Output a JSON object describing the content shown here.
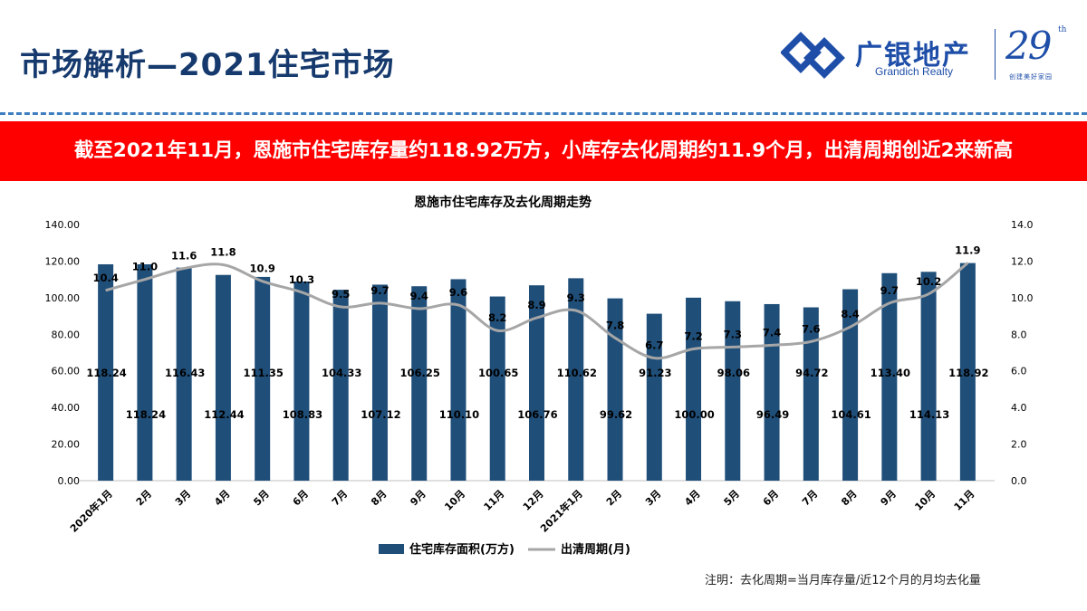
{
  "header": {
    "title": "市场解析—2021住宅市场",
    "brand_cn": "广银地产",
    "brand_en": "Grandich Realty",
    "anniversary_number": "29",
    "anniversary_suffix": "th",
    "anniversary_tagline": "创建美好家园"
  },
  "banner": {
    "text": "截至2021年11月，恩施市住宅库存量约118.92万方，小库存去化周期约11.9个月，出清周期创近2来新高"
  },
  "note": "注明：去化周期=当月库存量/近12个月的月均去化量",
  "colors": {
    "bar": "#1f4e79",
    "line": "#a6a6a6",
    "banner": "#ff0000",
    "title": "#163a6e"
  },
  "chart_data": {
    "type": "bar+line",
    "title": "恩施市住宅库存及去化周期走势",
    "categories": [
      "2020年1月",
      "2月",
      "3月",
      "4月",
      "5月",
      "6月",
      "7月",
      "8月",
      "9月",
      "10月",
      "11月",
      "12月",
      "2021年1月",
      "2月",
      "3月",
      "4月",
      "5月",
      "6月",
      "7月",
      "8月",
      "9月",
      "10月",
      "11月"
    ],
    "series": [
      {
        "name": "住宅库存面积(万方)",
        "type": "bar",
        "axis": "left",
        "values": [
          118.24,
          118.24,
          116.43,
          112.44,
          111.35,
          108.83,
          104.33,
          107.12,
          106.25,
          110.1,
          100.65,
          106.76,
          110.62,
          99.62,
          91.23,
          100.0,
          98.06,
          96.49,
          94.72,
          104.61,
          113.4,
          114.13,
          118.92
        ],
        "labels": [
          "118.24",
          "118.24",
          "116.43",
          "112.44",
          "111.35",
          "108.83",
          "104.33",
          "107.12",
          "106.25",
          "110.10",
          "100.65",
          "106.76",
          "110.62",
          "99.62",
          "91.23",
          "100.00",
          "98.06",
          "96.49",
          "94.72",
          "104.61",
          "113.40",
          "114.13",
          "118.92"
        ]
      },
      {
        "name": "出清周期(月)",
        "type": "line",
        "axis": "right",
        "values": [
          10.4,
          11.0,
          11.6,
          11.8,
          10.9,
          10.3,
          9.5,
          9.7,
          9.4,
          9.6,
          8.2,
          8.9,
          9.3,
          7.8,
          6.7,
          7.2,
          7.3,
          7.4,
          7.6,
          8.4,
          9.7,
          10.2,
          11.9
        ],
        "labels": [
          "10.4",
          "11.0",
          "11.6",
          "11.8",
          "10.9",
          "10.3",
          "9.5",
          "9.7",
          "9.4",
          "9.6",
          "8.2",
          "8.9",
          "9.3",
          "7.8",
          "6.7",
          "7.2",
          "7.3",
          "7.4",
          "7.6",
          "8.4",
          "9.7",
          "10.2",
          "11.9"
        ]
      }
    ],
    "y_left": {
      "min": 0,
      "max": 140,
      "ticks": [
        "0.00",
        "20.00",
        "40.00",
        "60.00",
        "80.00",
        "100.00",
        "120.00",
        "140.00"
      ]
    },
    "y_right": {
      "min": 0,
      "max": 14,
      "ticks": [
        "0.0",
        "2.0",
        "4.0",
        "6.0",
        "8.0",
        "10.0",
        "12.0",
        "14.0"
      ]
    },
    "legend_position": "bottom",
    "grid": false
  }
}
